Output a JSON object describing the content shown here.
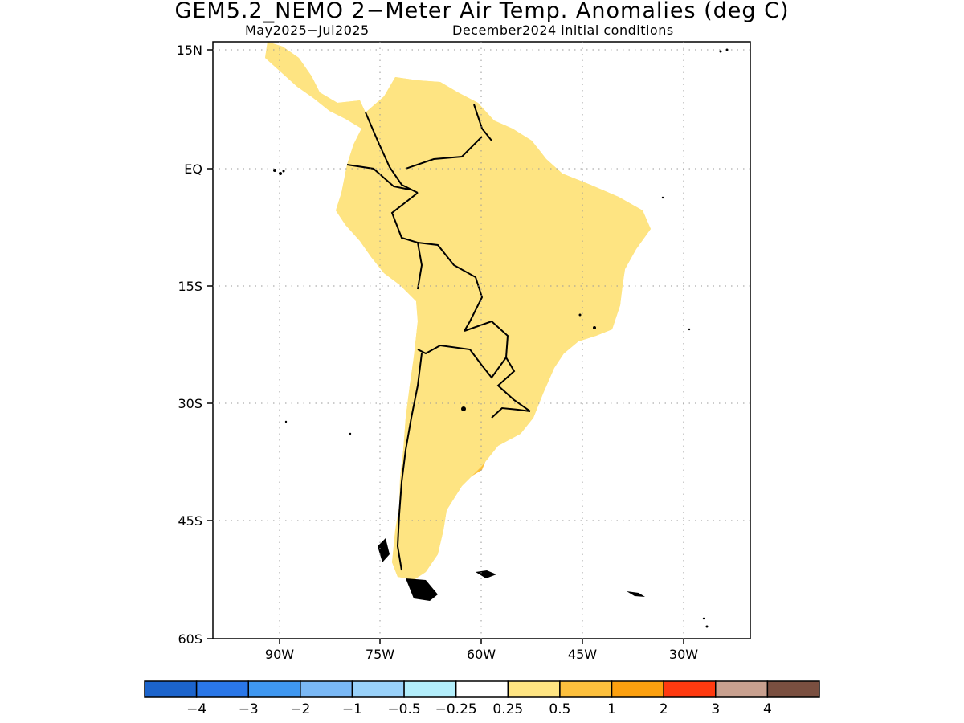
{
  "title": "GEM5.2_NEMO 2−Meter Air Temp. Anomalies (deg C)",
  "subtitle_left": "May2025−Jul2025",
  "subtitle_right": "December2024 initial conditions",
  "axes": {
    "lat_labels": [
      "15N",
      "EQ",
      "15S",
      "30S",
      "45S",
      "60S"
    ],
    "lon_labels": [
      "90W",
      "75W",
      "60W",
      "45W",
      "30W"
    ],
    "gridlines": "dotted"
  },
  "legend": {
    "labels": [
      "−4",
      "−3",
      "−2",
      "−1",
      "−0.5",
      "−0.25",
      "0.25",
      "0.5",
      "1",
      "2",
      "3",
      "4"
    ],
    "colors": [
      "#1c64cc",
      "#2a77e8",
      "#3f97f0",
      "#7ab8f5",
      "#99d1f9",
      "#b3eefb",
      "#ffffff",
      "#fee482",
      "#fdc03d",
      "#fca00f",
      "#ff3a10",
      "#c8a08f",
      "#7a4f40"
    ]
  },
  "map_layers": {
    "colors": {
      "weak_warm": "#fee482",
      "warm": "#fdc03d",
      "land_outline": "#000000"
    },
    "regions": [
      "South America",
      "Central America",
      "Caribbean"
    ]
  }
}
